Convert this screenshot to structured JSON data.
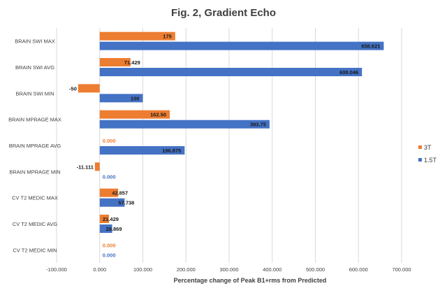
{
  "chart_data": {
    "type": "bar",
    "orientation": "horizontal",
    "title": "Fig. 2, Gradient Echo",
    "xlabel": "Percentage change of Peak B1+rms from Predicted",
    "ylabel": "",
    "xlim": [
      -100,
      700
    ],
    "xticks": [
      -100,
      0,
      100,
      200,
      300,
      400,
      500,
      600,
      700
    ],
    "xtick_labels": [
      "-100.000",
      "0.000",
      "100.000",
      "200.000",
      "300.000",
      "400.000",
      "500.000",
      "600.000",
      "700.000"
    ],
    "grid": true,
    "legend_position": "right",
    "categories": [
      "BRAIN SWI MAX",
      "BRAIN SWI AVG",
      "BRAIN SWI MIN",
      "BRAIN MPRAGE MAX",
      "BRAIN MPRAGE AVG",
      "BRAIN MPRAGE MIN",
      "CV T2 MEDIC MAX",
      "CV T2 MEDIC AVG",
      "CV T2 MEDIC MIN"
    ],
    "series": [
      {
        "name": "3T",
        "color": "#ed7d31",
        "values": [
          175,
          71.429,
          -50,
          162.5,
          0,
          -11.111,
          42.857,
          21.429,
          0
        ],
        "labels": [
          "175",
          "71.429",
          "-50",
          "162.50",
          "0.000",
          "-11.111",
          "42.857",
          "21.429",
          "0.000"
        ]
      },
      {
        "name": "1.5T",
        "color": "#4472c4",
        "values": [
          658.621,
          608.046,
          100,
          393.75,
          196.875,
          0,
          57.738,
          28.869,
          0
        ],
        "labels": [
          "658.621",
          "608.046",
          "100",
          "393.75",
          "196.875",
          "0.000",
          "57.738",
          "28.869",
          "0.000"
        ]
      }
    ]
  }
}
